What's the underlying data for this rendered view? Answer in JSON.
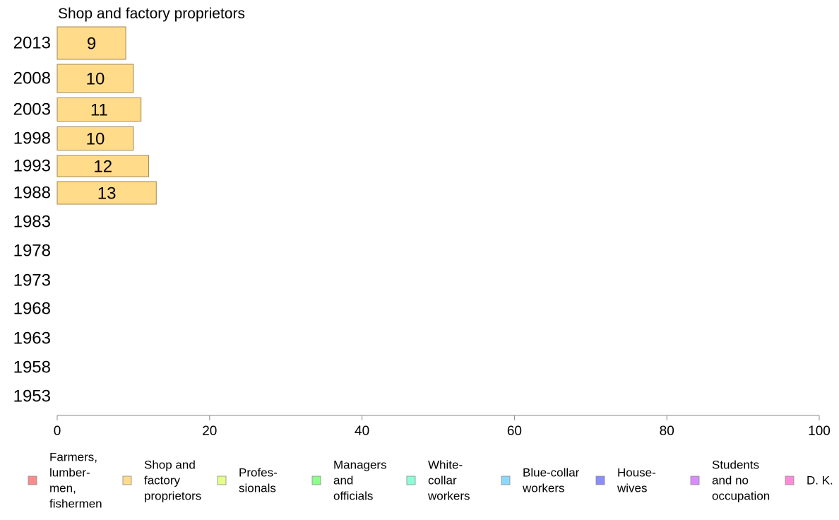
{
  "chart_data": {
    "type": "bar",
    "orientation": "horizontal",
    "title": "Shop and factory proprietors",
    "categories": [
      "2013",
      "2008",
      "2003",
      "1998",
      "1993",
      "1988",
      "1983",
      "1978",
      "1973",
      "1968",
      "1963",
      "1958",
      "1953"
    ],
    "series": [
      {
        "name": "Shop and factory proprietors",
        "values": [
          9,
          10,
          11,
          10,
          12,
          13,
          null,
          null,
          null,
          null,
          null,
          null,
          null
        ],
        "labels": [
          "9",
          "10",
          "11",
          "10",
          "12",
          "13",
          "",
          "",
          "",
          "",
          "",
          "",
          ""
        ],
        "color": "#ffdb8a",
        "border_color": "#a08850"
      }
    ],
    "xlim": [
      0,
      100
    ],
    "xticks": [
      0,
      20,
      40,
      60,
      80,
      100
    ],
    "xtick_labels": [
      "0",
      "20",
      "40",
      "60",
      "80",
      "100"
    ],
    "grid": false,
    "legend_position": "bottom",
    "legend": [
      {
        "label_lines": [
          "Farmers,",
          "lumber-",
          "men,",
          "fishermen"
        ],
        "color": "#ff8c8c"
      },
      {
        "label_lines": [
          "Shop and",
          "factory",
          "proprietors"
        ],
        "color": "#ffdb8a"
      },
      {
        "label_lines": [
          "Profes-",
          "sionals"
        ],
        "color": "#e5ff8c"
      },
      {
        "label_lines": [
          "Managers",
          "and",
          "officials"
        ],
        "color": "#8cff8c"
      },
      {
        "label_lines": [
          "White-",
          "collar",
          "workers"
        ],
        "color": "#8cffd9"
      },
      {
        "label_lines": [
          "Blue-collar",
          "workers"
        ],
        "color": "#8cd9ff"
      },
      {
        "label_lines": [
          "House-",
          "wives"
        ],
        "color": "#8c8cff"
      },
      {
        "label_lines": [
          "Students",
          "and no",
          "occupation"
        ],
        "color": "#d98cff"
      },
      {
        "label_lines": [
          "D. K."
        ],
        "color": "#ff8cd9"
      }
    ]
  }
}
